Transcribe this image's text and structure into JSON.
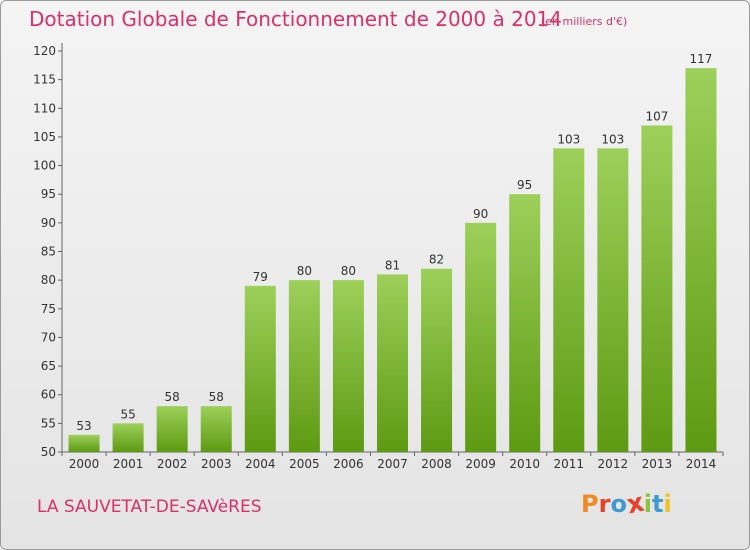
{
  "title": "Dotation Globale de Fonctionnement de 2000 à 2014",
  "subtitle": "(en milliers d'€)",
  "commune": "LA SAUVETAT-DE-SAVèRES",
  "logo": {
    "letters": [
      "P",
      "r",
      "o",
      "x",
      "i",
      "t",
      "i"
    ],
    "colors": [
      "#f08a24",
      "#e8402a",
      "#3c9ad6",
      "#e8402a",
      "#8cc43c",
      "#3c9ad6",
      "#f0c41c"
    ]
  },
  "colors": {
    "accent": "#d9306a",
    "bar_top": "#9dd05a",
    "bar_bottom": "#5d9a12"
  },
  "chart_data": {
    "type": "bar",
    "categories": [
      "2000",
      "2001",
      "2002",
      "2003",
      "2004",
      "2005",
      "2006",
      "2007",
      "2008",
      "2009",
      "2010",
      "2011",
      "2012",
      "2013",
      "2014"
    ],
    "values": [
      53,
      55,
      58,
      58,
      79,
      80,
      80,
      81,
      82,
      90,
      95,
      103,
      103,
      107,
      117
    ],
    "title": "Dotation Globale de Fonctionnement de 2000 à 2014",
    "xlabel": "",
    "ylabel": "",
    "ylim": [
      50,
      120
    ],
    "yticks": [
      50,
      55,
      60,
      65,
      70,
      75,
      80,
      85,
      90,
      95,
      100,
      105,
      110,
      115,
      120
    ],
    "grid": false
  }
}
